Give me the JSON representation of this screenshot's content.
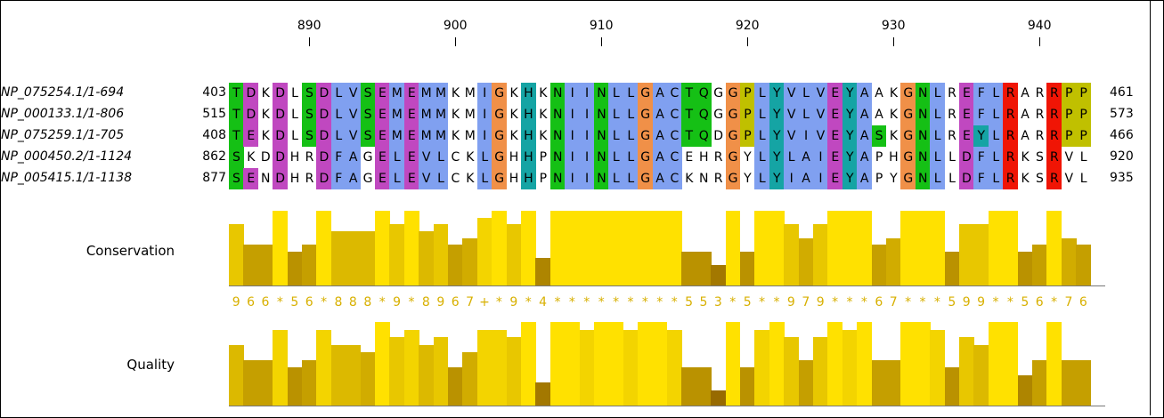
{
  "ruler": {
    "labels": [
      "890",
      "900",
      "910",
      "920",
      "930",
      "940"
    ],
    "label_columns": [
      5,
      15,
      25,
      35,
      45,
      55
    ]
  },
  "sequences": [
    {
      "name": "NP_075254.1/1-694",
      "start": "403",
      "end": "461",
      "residues": "TDKDLSDLVSEMEMMKMIGKHKNIINLLGACTQGGPLYVLVEYAAKGNLREFLRARRPP"
    },
    {
      "name": "NP_000133.1/1-806",
      "start": "515",
      "end": "573",
      "residues": "TDKDLSDLVSEMEMMKMIGKHKNIINLLGACTQGGPLYVLVEYAAKGNLREFLRARRPP"
    },
    {
      "name": "NP_075259.1/1-705",
      "start": "408",
      "end": "466",
      "residues": "TEKDLSDLVSEMEMMKMIGKHKNIINLLGACTQDGPLYVIVEYASKGNLREYLRARRPP"
    },
    {
      "name": "NP_000450.2/1-1124",
      "start": "862",
      "end": "920",
      "residues": "SKDDHRDFAGELEVLCKLGHHPNIINLLGACEHRGYLYLAIEYAPHGNLLDFLRKSRVL"
    },
    {
      "name": "NP_005415.1/1-1138",
      "start": "877",
      "end": "935",
      "residues": "SENDHRDFAGELEVLCKLGHHPNIINLLGACKNRGYLYIAIEYAPYGNLLDFLRKSRVL"
    }
  ],
  "colors": {
    "green": "#15c015",
    "magenta": "#c048c0",
    "cyan": "#15a4a4",
    "orange": "#f09048",
    "blue": "#80a0f0",
    "pink": "#f08080",
    "yellow": "#c0c000",
    "red": "#f01505",
    "cons_text": "#d8b000",
    "bar_full": "#ffe100"
  },
  "annotations": {
    "conservation_label": "Conservation",
    "quality_label": "Quality",
    "conservation_string": "966*56*888*9*8967+*9*4*********553*5**979***67***599**56*76"
  }
}
